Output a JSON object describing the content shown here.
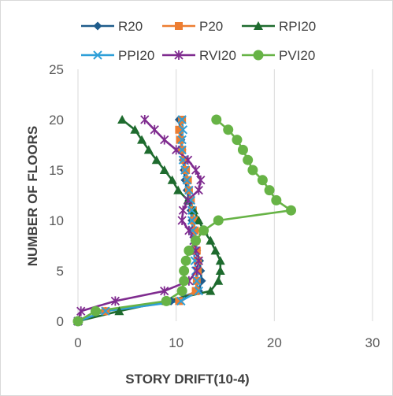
{
  "chart_data": {
    "type": "line",
    "title": "",
    "xlabel": "STORY DRIFT(10-4)",
    "ylabel": "NUMBER OF FLOORS",
    "xlim": [
      0,
      30
    ],
    "ylim": [
      0,
      25
    ],
    "x_ticks": [
      0,
      10,
      20,
      30
    ],
    "y_ticks": [
      0,
      5,
      10,
      15,
      20,
      25
    ],
    "grid": {
      "x": true,
      "y": false
    },
    "legend_position": "top",
    "series": [
      {
        "name": "R20",
        "color": "#1f5c8b",
        "marker": "diamond",
        "points": [
          [
            0,
            0
          ],
          [
            2.8,
            1
          ],
          [
            9.5,
            2
          ],
          [
            12.3,
            3
          ],
          [
            12.6,
            4
          ],
          [
            12.5,
            5
          ],
          [
            12.4,
            6
          ],
          [
            12.1,
            7
          ],
          [
            11.9,
            8
          ],
          [
            11.7,
            9
          ],
          [
            11.6,
            10
          ],
          [
            11.5,
            11
          ],
          [
            11.3,
            12
          ],
          [
            11.1,
            13
          ],
          [
            10.9,
            14
          ],
          [
            10.8,
            15
          ],
          [
            10.7,
            16
          ],
          [
            10.6,
            17
          ],
          [
            10.5,
            18
          ],
          [
            10.4,
            19
          ],
          [
            10.3,
            20
          ]
        ]
      },
      {
        "name": "P20",
        "color": "#ed7d31",
        "marker": "square",
        "points": [
          [
            0,
            0
          ],
          [
            2.8,
            1
          ],
          [
            10.3,
            2
          ],
          [
            12.0,
            3
          ],
          [
            12.1,
            4
          ],
          [
            12.2,
            5
          ],
          [
            12.2,
            6
          ],
          [
            12.1,
            7
          ],
          [
            12.0,
            8
          ],
          [
            11.9,
            9
          ],
          [
            11.8,
            10
          ],
          [
            11.7,
            11
          ],
          [
            11.5,
            12
          ],
          [
            11.3,
            13
          ],
          [
            11.2,
            14
          ],
          [
            11.0,
            15
          ],
          [
            10.8,
            16
          ],
          [
            10.6,
            17
          ],
          [
            10.4,
            18
          ],
          [
            10.3,
            19
          ],
          [
            10.6,
            20
          ]
        ]
      },
      {
        "name": "RPI20",
        "color": "#1e6b2e",
        "marker": "triangle",
        "points": [
          [
            0,
            0
          ],
          [
            4.2,
            1
          ],
          [
            9.0,
            2
          ],
          [
            13.5,
            3
          ],
          [
            14.3,
            4
          ],
          [
            14.5,
            5
          ],
          [
            14.5,
            6
          ],
          [
            14.0,
            7
          ],
          [
            13.5,
            8
          ],
          [
            12.8,
            9
          ],
          [
            12.3,
            10
          ],
          [
            11.8,
            11
          ],
          [
            11.2,
            12
          ],
          [
            10.2,
            13
          ],
          [
            9.6,
            14
          ],
          [
            8.8,
            15
          ],
          [
            8.0,
            16
          ],
          [
            7.2,
            17
          ],
          [
            6.5,
            18
          ],
          [
            5.8,
            19
          ],
          [
            4.5,
            20
          ]
        ]
      },
      {
        "name": "PPI20",
        "color": "#2e9fd8",
        "marker": "x",
        "points": [
          [
            0,
            0
          ],
          [
            2.8,
            1
          ],
          [
            10.5,
            2
          ],
          [
            12.3,
            3
          ],
          [
            12.1,
            4
          ],
          [
            12.0,
            5
          ],
          [
            11.9,
            6
          ],
          [
            11.8,
            7
          ],
          [
            11.8,
            8
          ],
          [
            11.7,
            9
          ],
          [
            11.6,
            10
          ],
          [
            11.6,
            11
          ],
          [
            11.5,
            12
          ],
          [
            11.3,
            13
          ],
          [
            11.1,
            14
          ],
          [
            10.9,
            15
          ],
          [
            10.7,
            16
          ],
          [
            10.6,
            17
          ],
          [
            10.6,
            18
          ],
          [
            10.7,
            19
          ],
          [
            10.6,
            20
          ]
        ]
      },
      {
        "name": "RVI20",
        "color": "#7f2b8f",
        "marker": "star",
        "points": [
          [
            0,
            0
          ],
          [
            0.3,
            1
          ],
          [
            3.8,
            2
          ],
          [
            8.8,
            3
          ],
          [
            11.3,
            4
          ],
          [
            12.1,
            5
          ],
          [
            12.3,
            6
          ],
          [
            12.0,
            7
          ],
          [
            11.8,
            8
          ],
          [
            11.3,
            9
          ],
          [
            10.6,
            10
          ],
          [
            10.7,
            11
          ],
          [
            11.2,
            12
          ],
          [
            12.3,
            13
          ],
          [
            12.5,
            14
          ],
          [
            12.0,
            15
          ],
          [
            11.2,
            16
          ],
          [
            10.0,
            17
          ],
          [
            8.8,
            18
          ],
          [
            7.8,
            19
          ],
          [
            6.8,
            20
          ]
        ]
      },
      {
        "name": "PVI20",
        "color": "#67b346",
        "marker": "circle",
        "points": [
          [
            0,
            0
          ],
          [
            1.8,
            1
          ],
          [
            9.0,
            2
          ],
          [
            10.6,
            3
          ],
          [
            10.8,
            4
          ],
          [
            10.8,
            5
          ],
          [
            11.0,
            6
          ],
          [
            11.3,
            7
          ],
          [
            12.0,
            8
          ],
          [
            12.8,
            9
          ],
          [
            14.3,
            10
          ],
          [
            21.7,
            11
          ],
          [
            20.2,
            12
          ],
          [
            19.5,
            13
          ],
          [
            18.8,
            14
          ],
          [
            17.8,
            15
          ],
          [
            17.3,
            16
          ],
          [
            16.8,
            17
          ],
          [
            16.2,
            18
          ],
          [
            15.3,
            19
          ],
          [
            14.1,
            20
          ]
        ]
      }
    ]
  }
}
